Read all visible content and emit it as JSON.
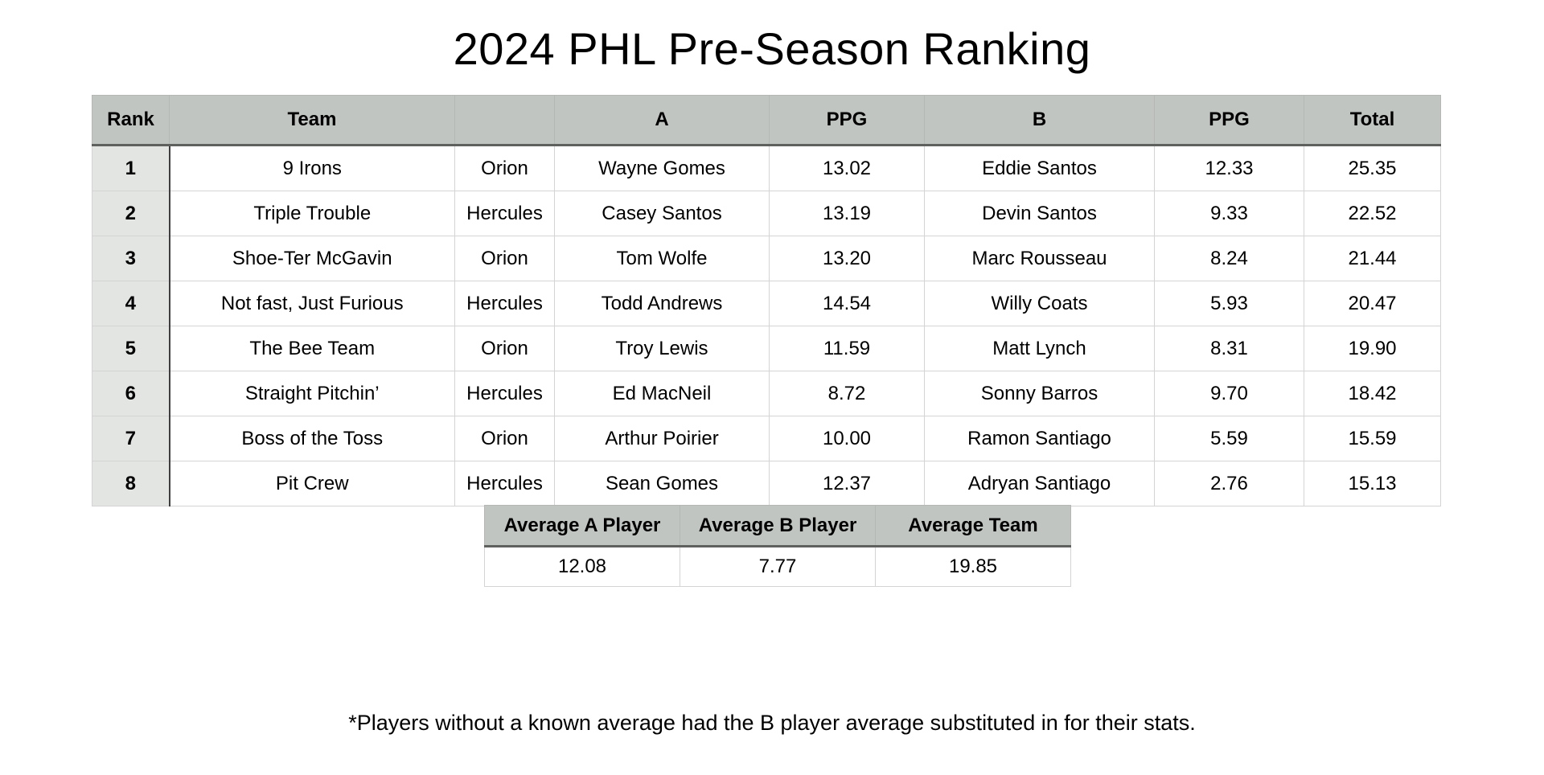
{
  "title": "2024 PHL Pre-Season Ranking",
  "main_table": {
    "columns": [
      "Rank",
      "Team",
      "",
      "A",
      "PPG",
      "B",
      "PPG",
      "Total"
    ],
    "rows": [
      [
        "1",
        "9 Irons",
        "Orion",
        "Wayne Gomes",
        "13.02",
        "Eddie Santos",
        "12.33",
        "25.35"
      ],
      [
        "2",
        "Triple Trouble",
        "Hercules",
        "Casey Santos",
        "13.19",
        "Devin Santos",
        "9.33",
        "22.52"
      ],
      [
        "3",
        "Shoe-Ter McGavin",
        "Orion",
        "Tom Wolfe",
        "13.20",
        "Marc Rousseau",
        "8.24",
        "21.44"
      ],
      [
        "4",
        "Not fast, Just Furious",
        "Hercules",
        "Todd Andrews",
        "14.54",
        "Willy Coats",
        "5.93",
        "20.47"
      ],
      [
        "5",
        "The Bee Team",
        "Orion",
        "Troy Lewis",
        "11.59",
        "Matt Lynch",
        "8.31",
        "19.90"
      ],
      [
        "6",
        "Straight Pitchin’",
        "Hercules",
        "Ed MacNeil",
        "8.72",
        "Sonny Barros",
        "9.70",
        "18.42"
      ],
      [
        "7",
        "Boss of the Toss",
        "Orion",
        "Arthur Poirier",
        "10.00",
        "Ramon Santiago",
        "5.59",
        "15.59"
      ],
      [
        "8",
        "Pit Crew",
        "Hercules",
        "Sean Gomes",
        "12.37",
        "Adryan Santiago",
        "2.76",
        "15.13"
      ]
    ]
  },
  "summary_table": {
    "columns": [
      "Average A Player",
      "Average B Player",
      "Average Team"
    ],
    "rows": [
      [
        "12.08",
        "7.77",
        "19.85"
      ]
    ]
  },
  "footnote": "*Players without a known average had the B player average substituted in for their stats.",
  "colors": {
    "header_bg": "#c1c5c2",
    "rank_col_bg": "#e3e5e3",
    "header_bottom_border": "#5f615f",
    "rank_divider": "#3f3f3f",
    "cell_border": "#d4d4d4"
  }
}
